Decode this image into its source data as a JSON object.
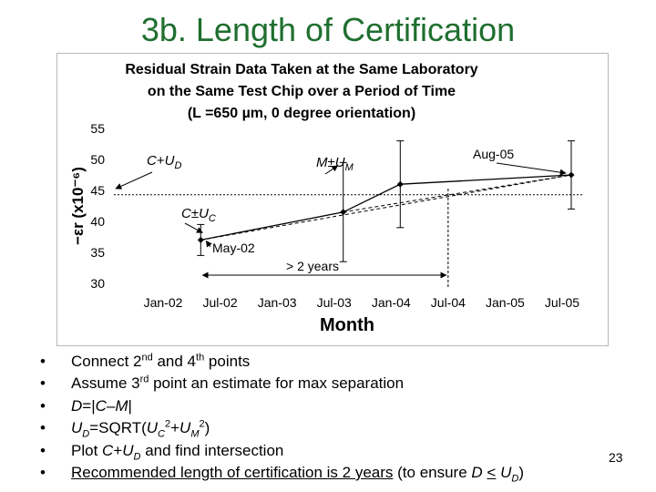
{
  "slide": {
    "title": "3b. Length of Certification",
    "page_number": "23"
  },
  "chart_data": {
    "type": "line",
    "title_lines": [
      "Residual Strain Data Taken at the Same Laboratory",
      "on the Same Test Chip over a Period of Time",
      "(L =650 µm, 0 degree orientation)"
    ],
    "xlabel": "Month",
    "ylabel": "−εr (x10⁻⁶)",
    "x_ticks": [
      "Jan-02",
      "Jul-02",
      "Jan-03",
      "Jul-03",
      "Jan-04",
      "Jul-04",
      "Jan-05",
      "Jul-05"
    ],
    "y_ticks": [
      "30",
      "35",
      "40",
      "45",
      "50",
      "55"
    ],
    "ylim": [
      30,
      55
    ],
    "grid": false,
    "series": [
      {
        "x": [
          2002.33,
          2003.58,
          2004.08,
          2005.58
        ],
        "y": [
          37,
          41.5,
          46,
          47.5
        ],
        "error": [
          2.5,
          8,
          7,
          5.5
        ]
      }
    ],
    "dashed_line": {
      "x": [
        2002.33,
        2005.58
      ],
      "y": [
        37,
        47.5
      ]
    },
    "dashed_line_2": {
      "x": [
        2003.58,
        2005.58
      ],
      "y": [
        41.5,
        47.5
      ]
    },
    "reference_h": {
      "y": 44.3
    },
    "reference_v": {
      "x": 2004.5
    },
    "annotations": {
      "cud": "C+U D",
      "cuc": "C ±U C",
      "mum": "M ±U M",
      "may02": "May-02",
      "aug05": "Aug-05",
      "twoyears": "> 2 years"
    }
  },
  "bullets": {
    "b1": "Connect 2nd and 4th points",
    "b2": "Assume 3rd point an estimate for max separation",
    "b3": "D=|C–M|",
    "b4": "UD=SQRT(UC2+UM2)",
    "b5": "Plot C+UD and find intersection",
    "b6": "Recommended length of certification is 2 years (to ensure D < UD)"
  }
}
